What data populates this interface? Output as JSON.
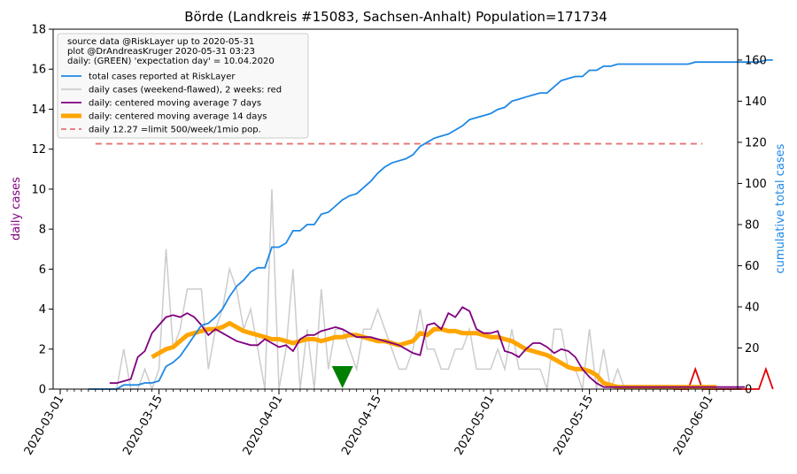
{
  "chart_data": {
    "type": "line",
    "title": "Börde (Landkreis #15083, Sachsen-Anhalt) Population=171734",
    "ylabel_left": "daily cases",
    "ylabel_right": "cumulative total cases",
    "ylim_left": [
      0,
      18
    ],
    "ylim_right": [
      0,
      175
    ],
    "xlim": [
      "2020-02-29",
      "2020-06-05"
    ],
    "yticks_left": [
      0,
      2,
      4,
      6,
      8,
      10,
      12,
      14,
      16,
      18
    ],
    "yticks_right": [
      0,
      20,
      40,
      60,
      80,
      100,
      120,
      140,
      160
    ],
    "xticks": [
      "2020-03-01",
      "2020-03-15",
      "2020-04-01",
      "2020-04-15",
      "2020-05-01",
      "2020-05-15",
      "2020-06-01"
    ],
    "legend_position": "top-left",
    "info_lines": [
      "source data @RiskLayer up to 2020-05-31",
      "plot @DrAndreasKruger 2020-05-31 03:23",
      "daily: (GREEN) 'expectation day' = 10.04.2020"
    ],
    "legend": [
      {
        "label": "total cases reported at RiskLayer",
        "color": "#1e88e5",
        "style": "solid"
      },
      {
        "label": "daily cases (weekend-flawed), 2 weeks: red",
        "color": "#cccccc",
        "style": "solid"
      },
      {
        "label": "daily: centered moving average 7 days",
        "color": "#800080",
        "style": "solid"
      },
      {
        "label": "daily: centered moving average 14 days",
        "color": "#ffa500",
        "style": "thick"
      },
      {
        "label": "daily 12.27 =limit 500/week/1mio pop.",
        "color": "#e57373",
        "style": "dashed"
      }
    ],
    "limit_line": {
      "value": 12.27,
      "start": "2020-03-06",
      "end": "2020-05-31"
    },
    "expectation_day": "2020-04-10",
    "start_date": "2020-03-05",
    "total_cases": [
      0,
      0,
      0,
      0,
      0,
      2,
      2,
      2,
      3,
      3,
      4,
      11,
      13,
      16,
      21,
      26,
      31,
      32,
      35,
      39,
      45,
      50,
      53,
      57,
      59,
      59,
      69,
      69,
      71,
      77,
      77,
      80,
      80,
      85,
      86,
      89,
      92,
      94,
      95,
      98,
      101,
      105,
      108,
      110,
      111,
      112,
      114,
      118,
      120,
      122,
      123,
      124,
      126,
      128,
      131,
      132,
      133,
      134,
      136,
      137,
      140,
      141,
      142,
      143,
      144,
      144,
      147,
      150,
      151,
      152,
      152,
      155,
      155,
      157,
      157,
      158,
      158,
      158,
      158,
      158,
      158,
      158,
      158,
      158,
      158,
      158,
      159,
      159,
      159,
      159,
      159,
      159,
      159,
      159,
      159,
      159,
      160,
      160
    ],
    "daily_cases": [
      0,
      0,
      0,
      0,
      0,
      2,
      0,
      0,
      1,
      0,
      1,
      7,
      2,
      3,
      5,
      5,
      5,
      1,
      3,
      4,
      6,
      5,
      3,
      4,
      2,
      0,
      10,
      0,
      2,
      6,
      0,
      3,
      0,
      5,
      1,
      3,
      3,
      2,
      1,
      3,
      3,
      4,
      3,
      2,
      1,
      1,
      2,
      4,
      2,
      2,
      1,
      1,
      2,
      2,
      3,
      1,
      1,
      1,
      2,
      1,
      3,
      1,
      1,
      1,
      1,
      0,
      3,
      3,
      1,
      1,
      0,
      3,
      0,
      2,
      0,
      1,
      0,
      0,
      0,
      0,
      0,
      0,
      0,
      0,
      0,
      0,
      1,
      0,
      0,
      0,
      0,
      0,
      0,
      0,
      0,
      0,
      1,
      0
    ],
    "ma7": [
      null,
      null,
      null,
      0.3,
      0.3,
      0.4,
      0.5,
      1.6,
      1.9,
      2.8,
      3.2,
      3.6,
      3.7,
      3.6,
      3.8,
      3.6,
      3.2,
      2.7,
      3.0,
      2.8,
      2.6,
      2.4,
      2.3,
      2.2,
      2.2,
      2.5,
      2.3,
      2.1,
      2.2,
      1.9,
      2.5,
      2.7,
      2.7,
      2.9,
      3.0,
      3.1,
      3.0,
      2.8,
      2.6,
      2.6,
      2.6,
      2.5,
      2.4,
      2.3,
      2.2,
      2.0,
      1.8,
      1.7,
      3.2,
      3.3,
      3.0,
      3.8,
      3.6,
      4.1,
      3.9,
      3.0,
      2.8,
      2.8,
      2.9,
      1.9,
      1.8,
      1.6,
      2.0,
      2.3,
      2.3,
      2.1,
      1.8,
      2.0,
      1.9,
      1.6,
      1.0,
      0.6,
      0.3,
      0.1,
      0.1,
      0.1,
      0.1,
      0.1,
      0.1,
      0.1,
      0.1,
      0.1,
      0.1,
      0.1,
      0.1,
      0.1,
      0.1,
      0.1,
      0.1,
      0.1,
      0.1,
      0.1,
      0.1,
      0.1,
      null,
      null,
      null
    ],
    "ma14": [
      null,
      null,
      null,
      null,
      null,
      null,
      null,
      null,
      null,
      1.6,
      1.8,
      2.0,
      2.1,
      2.4,
      2.7,
      2.8,
      2.9,
      3.0,
      3.0,
      3.1,
      3.3,
      3.1,
      2.9,
      2.8,
      2.7,
      2.6,
      2.5,
      2.5,
      2.4,
      2.3,
      2.4,
      2.5,
      2.5,
      2.4,
      2.5,
      2.6,
      2.6,
      2.7,
      2.7,
      2.6,
      2.5,
      2.4,
      2.4,
      2.3,
      2.2,
      2.3,
      2.4,
      2.8,
      2.7,
      3.0,
      3.0,
      2.9,
      2.9,
      2.8,
      2.8,
      2.8,
      2.7,
      2.6,
      2.6,
      2.5,
      2.4,
      2.2,
      2.0,
      1.9,
      1.8,
      1.7,
      1.5,
      1.3,
      1.1,
      1.0,
      1.0,
      0.9,
      0.7,
      0.3,
      0.2,
      0.1,
      0.1,
      0.1,
      0.1,
      0.1,
      0.1,
      0.1,
      0.1,
      0.1,
      0.1,
      0.1,
      0.1,
      0.1,
      0.1,
      0.1,
      null,
      null,
      null,
      null,
      null,
      null,
      null,
      null
    ]
  }
}
